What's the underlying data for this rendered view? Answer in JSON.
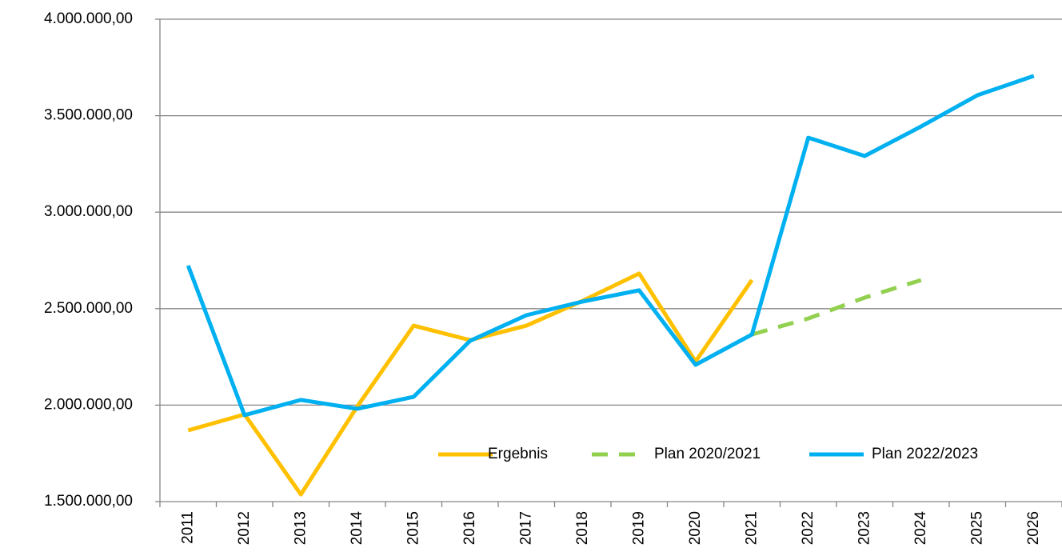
{
  "chart_data": {
    "type": "line",
    "categories": [
      "2011",
      "2012",
      "2013",
      "2014",
      "2015",
      "2016",
      "2017",
      "2018",
      "2019",
      "2020",
      "2021",
      "2022",
      "2023",
      "2024",
      "2025",
      "2026"
    ],
    "series": [
      {
        "name": "Ergebnis",
        "color": "#ffc000",
        "dash": false,
        "values": [
          1869000,
          1952000,
          1537000,
          1993000,
          2412000,
          2337000,
          2412000,
          2541000,
          2682000,
          2226000,
          2648000,
          null,
          null,
          null,
          null,
          null
        ]
      },
      {
        "name": "Plan 2020/2021",
        "color": "#92d050",
        "dash": true,
        "values": [
          null,
          null,
          null,
          null,
          null,
          null,
          null,
          null,
          null,
          null,
          2366000,
          2449000,
          2557000,
          2648000,
          null,
          null
        ]
      },
      {
        "name": "Plan 2022/2023",
        "color": "#00b0f0",
        "dash": false,
        "values": [
          2723000,
          1948000,
          2027000,
          1981000,
          2043000,
          2333000,
          2466000,
          2537000,
          2595000,
          2209000,
          2366000,
          3386000,
          3291000,
          3444000,
          3606000,
          3706000
        ]
      }
    ],
    "ylim": [
      1500000,
      4000000
    ],
    "yticks": [
      {
        "value": 1500000,
        "label": "1.500.000,00"
      },
      {
        "value": 2000000,
        "label": "2.000.000,00"
      },
      {
        "value": 2500000,
        "label": "2.500.000,00"
      },
      {
        "value": 3000000,
        "label": "3.000.000,00"
      },
      {
        "value": 3500000,
        "label": "3.500.000,00"
      },
      {
        "value": 4000000,
        "label": "4.000.000,00"
      }
    ],
    "grid": true,
    "legend": "lower right"
  }
}
